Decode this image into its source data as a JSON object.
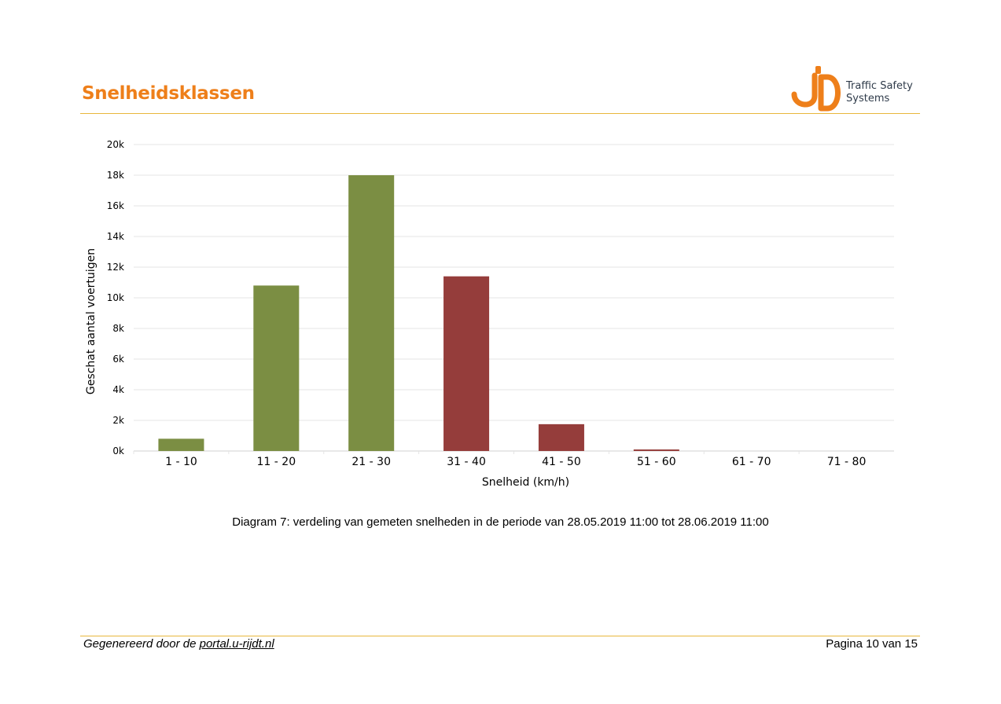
{
  "header": {
    "title": "Snelheidsklassen",
    "logo": {
      "line1": "Traffic Safety",
      "line2": "Systems",
      "accent": "#ee7f1a"
    }
  },
  "chart_data": {
    "type": "bar",
    "categories": [
      "1 - 10",
      "11 - 20",
      "21 - 30",
      "31 - 40",
      "41 - 50",
      "51 - 60",
      "61 - 70",
      "71 - 80"
    ],
    "values": [
      800,
      10800,
      18000,
      11400,
      1750,
      100,
      0,
      0
    ],
    "bar_colors": [
      "#7b8e43",
      "#7b8e43",
      "#7b8e43",
      "#953d3b",
      "#953d3b",
      "#953d3b",
      "#953d3b",
      "#953d3b"
    ],
    "ylim": [
      0,
      20000
    ],
    "yticks": [
      "0k",
      "2k",
      "4k",
      "6k",
      "8k",
      "10k",
      "12k",
      "14k",
      "16k",
      "18k",
      "20k"
    ],
    "xlabel": "Snelheid (km/h)",
    "ylabel": "Geschat aantal voertuigen",
    "grid": true
  },
  "caption": "Diagram 7: verdeling van gemeten snelheden in de periode van 28.05.2019 11:00 tot 28.06.2019 11:00",
  "footer": {
    "generated_prefix": "Gegenereerd door de ",
    "generated_link": "portal.u-rijdt.nl",
    "page": "Pagina 10 van 15"
  }
}
